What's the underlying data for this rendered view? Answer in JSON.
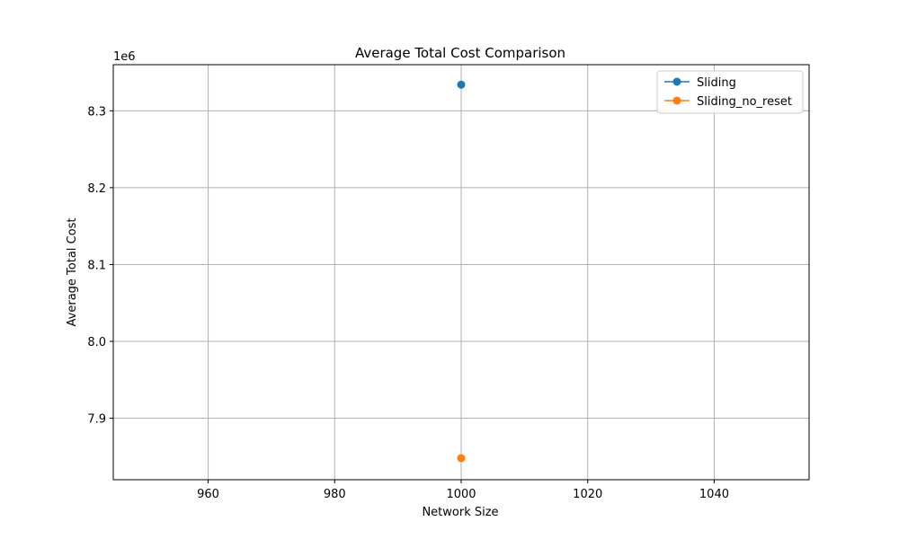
{
  "chart_data": {
    "type": "scatter",
    "title": "Average Total Cost Comparison",
    "xlabel": "Network Size",
    "ylabel": "Average Total Cost",
    "y_offset_label": "1e6",
    "xlim": [
      945,
      1055
    ],
    "ylim": [
      7.82,
      8.36
    ],
    "x_ticks": [
      960,
      980,
      1000,
      1020,
      1040
    ],
    "x_tick_labels": [
      "960",
      "980",
      "1000",
      "1020",
      "1040"
    ],
    "y_ticks": [
      7.9,
      8.0,
      8.1,
      8.2,
      8.3
    ],
    "y_tick_labels": [
      "7.9",
      "8.0",
      "8.1",
      "8.2",
      "8.3"
    ],
    "grid": true,
    "legend_position": "top-right",
    "series": [
      {
        "name": "Sliding",
        "color": "#1f77b4",
        "x": [
          1000
        ],
        "y": [
          8.334
        ]
      },
      {
        "name": "Sliding_no_reset",
        "color": "#ff7f0e",
        "x": [
          1000
        ],
        "y": [
          7.848
        ]
      }
    ]
  }
}
